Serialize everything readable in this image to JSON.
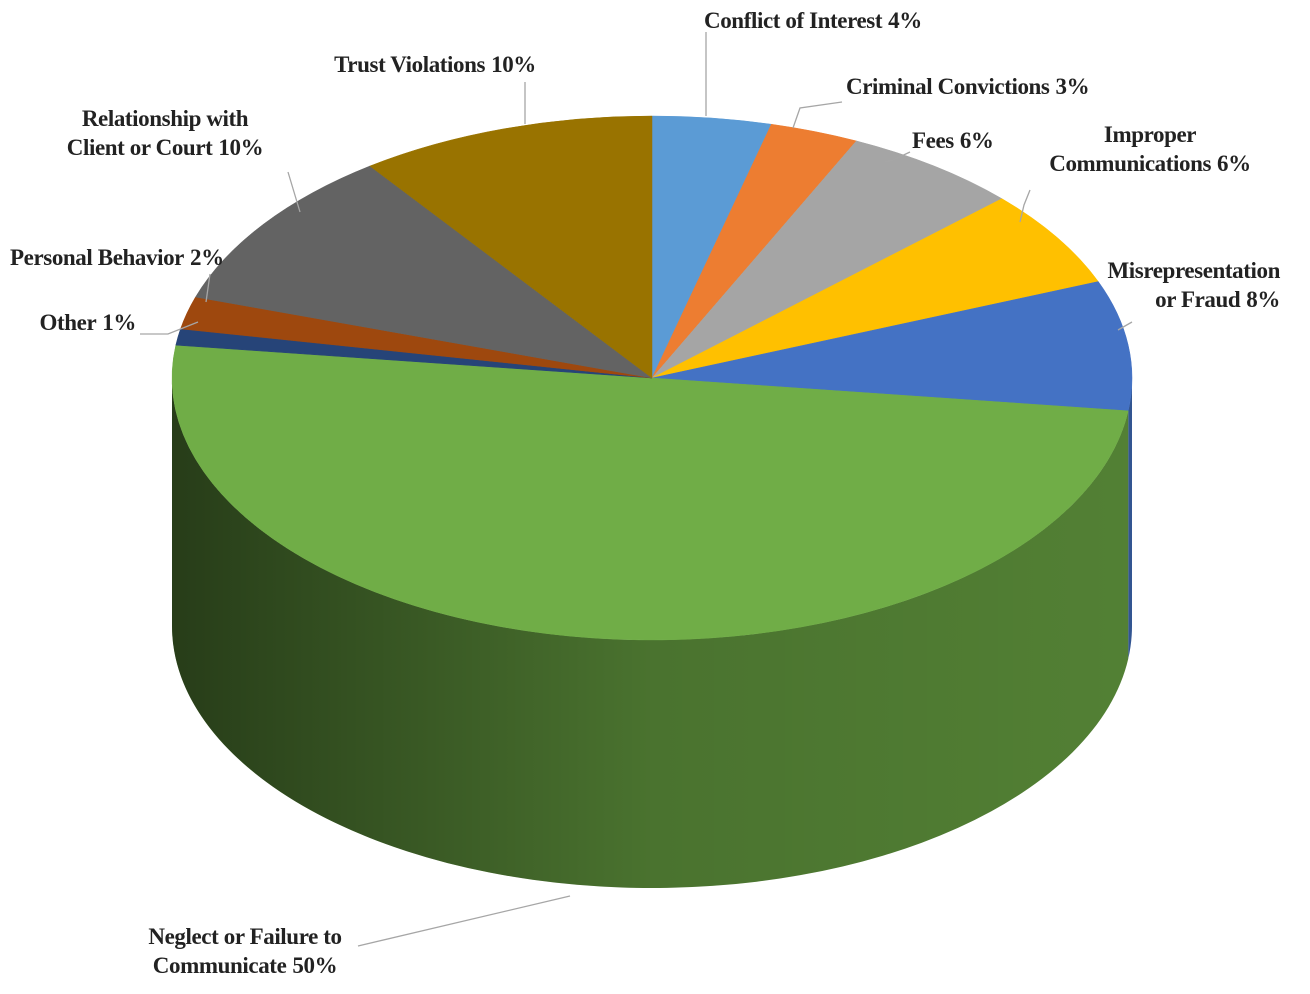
{
  "chart_data": {
    "type": "pie",
    "categories": [
      "Conflict of Interest",
      "Criminal Convictions",
      "Fees",
      "Improper\nCommunications",
      "Misrepresentation\nor Fraud",
      "Neglect or Failure to\nCommunicate",
      "Other",
      "Personal Behavior",
      "Relationship with\nClient or Court",
      "Trust Violations"
    ],
    "values": [
      4,
      3,
      6,
      6,
      8,
      50,
      1,
      2,
      10,
      10
    ],
    "value_labels": [
      "4%",
      "3%",
      "6%",
      "6%",
      "8%",
      "50%",
      "1%",
      "2%",
      "10%",
      "10%"
    ],
    "colors": [
      "#5b9bd5",
      "#ed7d31",
      "#a5a5a5",
      "#ffc000",
      "#4472c4",
      "#70ad47",
      "#264478",
      "#9e480e",
      "#636363",
      "#997300"
    ]
  }
}
